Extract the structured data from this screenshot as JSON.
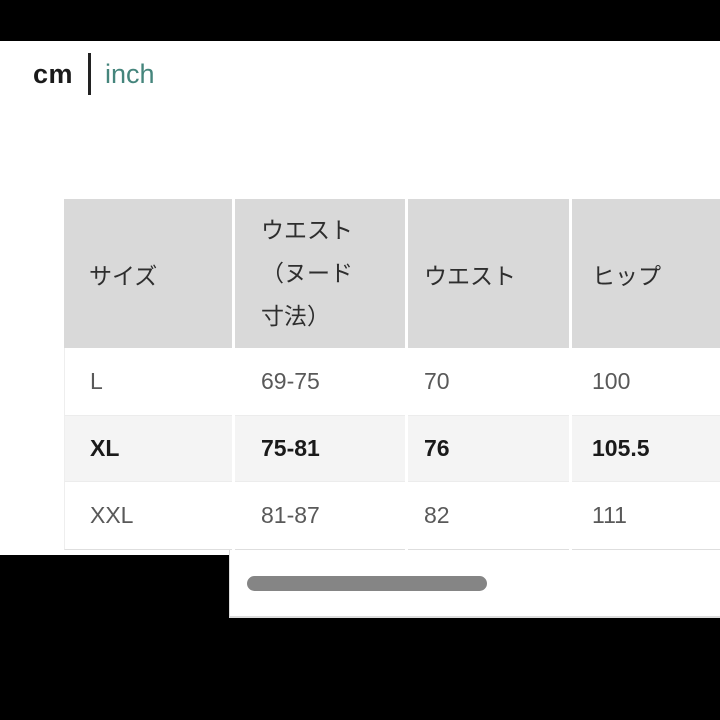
{
  "units": {
    "cm_label": "cm",
    "inch_label": "inch"
  },
  "table": {
    "headers": {
      "size": "サイズ",
      "waist_nude_lines": [
        "ウエスト",
        "（ヌード",
        "寸法）"
      ],
      "waist": "ウエスト",
      "hip": "ヒップ"
    },
    "rows": [
      {
        "size": "L",
        "waist_nude": "69-75",
        "waist": "70",
        "hip": "100",
        "highlighted": false
      },
      {
        "size": "XL",
        "waist_nude": "75-81",
        "waist": "76",
        "hip": "105.5",
        "highlighted": true
      },
      {
        "size": "XXL",
        "waist_nude": "81-87",
        "waist": "82",
        "hip": "111",
        "highlighted": false
      }
    ]
  },
  "colors": {
    "accent_teal": "#45857c",
    "header_bg": "#d9d9d9",
    "highlight_row_bg": "#f4f4f4",
    "scrollbar_thumb": "#858585",
    "letterbox": "#000000"
  }
}
